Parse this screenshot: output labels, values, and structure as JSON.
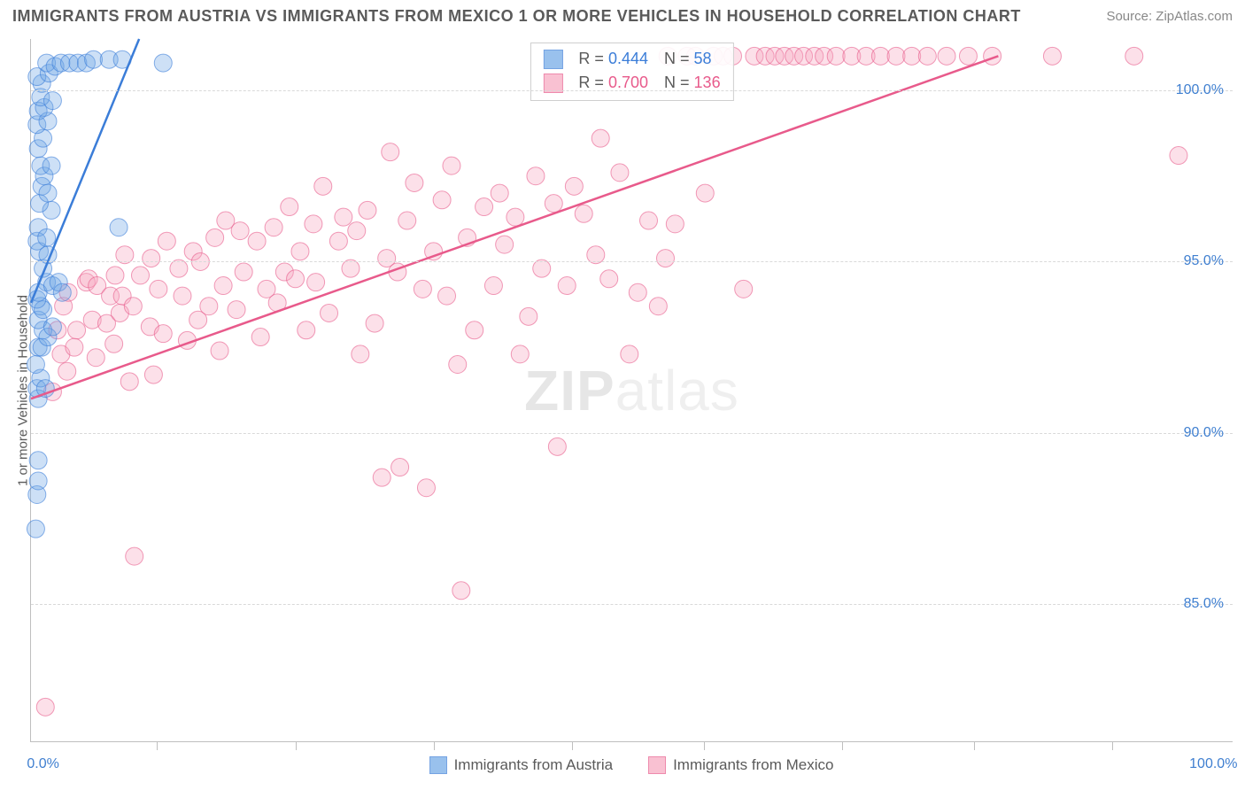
{
  "title": "IMMIGRANTS FROM AUSTRIA VS IMMIGRANTS FROM MEXICO 1 OR MORE VEHICLES IN HOUSEHOLD CORRELATION CHART",
  "source_label": "Source: ZipAtlas.com",
  "y_axis_label": "1 or more Vehicles in Household",
  "watermark": "ZIPatlas",
  "chart": {
    "type": "scatter+trend",
    "background_color": "#ffffff",
    "grid_color": "#d9d9d9",
    "axis_color": "#bfbfbf",
    "tick_label_color": "#3f7fd0",
    "tick_fontsize": 16,
    "title_fontsize": 18,
    "label_fontsize": 15,
    "xlim": [
      0,
      100
    ],
    "ylim": [
      81,
      101.5
    ],
    "y_gridlines": [
      85,
      90,
      95,
      100
    ],
    "y_tick_labels": [
      "85.0%",
      "90.0%",
      "95.0%",
      "100.0%"
    ],
    "x_ticks_minor": [
      10.5,
      22,
      33.5,
      45,
      56,
      67.5,
      78.5,
      90
    ],
    "x_tick_labels": {
      "left": "0.0%",
      "right": "100.0%"
    },
    "marker_radius": 10,
    "marker_opacity": 0.35,
    "line_width": 2.5
  },
  "series_austria": {
    "label": "Immigrants from Austria",
    "color_fill": "#6fa7e6",
    "color_stroke": "#3b7dd8",
    "R": "0.444",
    "N": "58",
    "trend": {
      "x1": 0,
      "y1": 93.8,
      "x2": 9,
      "y2": 101.5
    },
    "points": [
      [
        0.4,
        87.2
      ],
      [
        0.5,
        88.2
      ],
      [
        0.6,
        88.6
      ],
      [
        0.6,
        89.2
      ],
      [
        0.6,
        91.0
      ],
      [
        0.5,
        91.3
      ],
      [
        0.8,
        91.6
      ],
      [
        1.2,
        91.3
      ],
      [
        0.4,
        92.0
      ],
      [
        0.6,
        92.5
      ],
      [
        0.9,
        92.5
      ],
      [
        1.0,
        93.0
      ],
      [
        0.6,
        93.3
      ],
      [
        0.8,
        93.7
      ],
      [
        1.4,
        92.8
      ],
      [
        1.8,
        93.1
      ],
      [
        1.0,
        93.6
      ],
      [
        0.5,
        93.9
      ],
      [
        1.3,
        94.4
      ],
      [
        0.6,
        94.1
      ],
      [
        1.8,
        94.3
      ],
      [
        2.3,
        94.4
      ],
      [
        2.6,
        94.1
      ],
      [
        1.0,
        94.8
      ],
      [
        0.7,
        95.3
      ],
      [
        1.4,
        95.2
      ],
      [
        0.5,
        95.6
      ],
      [
        0.6,
        96.0
      ],
      [
        1.3,
        95.7
      ],
      [
        1.7,
        96.5
      ],
      [
        0.7,
        96.7
      ],
      [
        0.9,
        97.2
      ],
      [
        1.4,
        97.0
      ],
      [
        1.1,
        97.5
      ],
      [
        0.8,
        97.8
      ],
      [
        1.7,
        97.8
      ],
      [
        0.6,
        98.3
      ],
      [
        1.0,
        98.6
      ],
      [
        0.5,
        99.0
      ],
      [
        1.4,
        99.1
      ],
      [
        0.6,
        99.4
      ],
      [
        1.1,
        99.5
      ],
      [
        0.8,
        99.8
      ],
      [
        1.8,
        99.7
      ],
      [
        0.9,
        100.2
      ],
      [
        0.5,
        100.4
      ],
      [
        1.5,
        100.5
      ],
      [
        1.3,
        100.8
      ],
      [
        2.0,
        100.7
      ],
      [
        2.5,
        100.8
      ],
      [
        3.2,
        100.8
      ],
      [
        3.9,
        100.8
      ],
      [
        4.6,
        100.8
      ],
      [
        5.2,
        100.9
      ],
      [
        6.5,
        100.9
      ],
      [
        7.6,
        100.9
      ],
      [
        11.0,
        100.8
      ],
      [
        7.3,
        96.0
      ]
    ]
  },
  "series_mexico": {
    "label": "Immigrants from Mexico",
    "color_fill": "#f7a7bf",
    "color_stroke": "#e85a8b",
    "R": "0.700",
    "N": "136",
    "trend": {
      "x1": 0,
      "y1": 91.0,
      "x2": 80.5,
      "y2": 101.0
    },
    "points": [
      [
        1.2,
        82.0
      ],
      [
        1.8,
        91.2
      ],
      [
        2.5,
        92.3
      ],
      [
        2.7,
        93.7
      ],
      [
        2.2,
        93.0
      ],
      [
        3.0,
        91.8
      ],
      [
        3.8,
        93.0
      ],
      [
        3.1,
        94.1
      ],
      [
        3.6,
        92.5
      ],
      [
        4.6,
        94.4
      ],
      [
        5.1,
        93.3
      ],
      [
        4.8,
        94.5
      ],
      [
        5.4,
        92.2
      ],
      [
        5.5,
        94.3
      ],
      [
        6.3,
        93.2
      ],
      [
        6.6,
        94.0
      ],
      [
        6.9,
        92.6
      ],
      [
        7.0,
        94.6
      ],
      [
        7.4,
        93.5
      ],
      [
        7.6,
        94.0
      ],
      [
        7.8,
        95.2
      ],
      [
        8.2,
        91.5
      ],
      [
        8.5,
        93.7
      ],
      [
        8.6,
        86.4
      ],
      [
        9.1,
        94.6
      ],
      [
        9.9,
        93.1
      ],
      [
        10.0,
        95.1
      ],
      [
        10.2,
        91.7
      ],
      [
        10.6,
        94.2
      ],
      [
        11.0,
        92.9
      ],
      [
        11.3,
        95.6
      ],
      [
        12.3,
        94.8
      ],
      [
        12.6,
        94.0
      ],
      [
        13.0,
        92.7
      ],
      [
        13.5,
        95.3
      ],
      [
        13.9,
        93.3
      ],
      [
        14.1,
        95.0
      ],
      [
        14.8,
        93.7
      ],
      [
        15.3,
        95.7
      ],
      [
        15.7,
        92.4
      ],
      [
        16.0,
        94.3
      ],
      [
        16.2,
        96.2
      ],
      [
        17.1,
        93.6
      ],
      [
        17.4,
        95.9
      ],
      [
        17.7,
        94.7
      ],
      [
        18.8,
        95.6
      ],
      [
        19.1,
        92.8
      ],
      [
        19.6,
        94.2
      ],
      [
        20.2,
        96.0
      ],
      [
        20.5,
        93.8
      ],
      [
        21.1,
        94.7
      ],
      [
        21.5,
        96.6
      ],
      [
        22.0,
        94.5
      ],
      [
        22.4,
        95.3
      ],
      [
        22.9,
        93.0
      ],
      [
        23.5,
        96.1
      ],
      [
        23.7,
        94.4
      ],
      [
        24.3,
        97.2
      ],
      [
        24.8,
        93.5
      ],
      [
        25.6,
        95.6
      ],
      [
        26.0,
        96.3
      ],
      [
        26.6,
        94.8
      ],
      [
        27.1,
        95.9
      ],
      [
        27.4,
        92.3
      ],
      [
        28.0,
        96.5
      ],
      [
        28.6,
        93.2
      ],
      [
        29.2,
        88.7
      ],
      [
        29.6,
        95.1
      ],
      [
        29.9,
        98.2
      ],
      [
        30.5,
        94.7
      ],
      [
        30.7,
        89.0
      ],
      [
        31.3,
        96.2
      ],
      [
        31.9,
        97.3
      ],
      [
        32.6,
        94.2
      ],
      [
        32.9,
        88.4
      ],
      [
        33.5,
        95.3
      ],
      [
        34.2,
        96.8
      ],
      [
        34.6,
        94.0
      ],
      [
        35.0,
        97.8
      ],
      [
        35.5,
        92.0
      ],
      [
        35.8,
        85.4
      ],
      [
        36.3,
        95.7
      ],
      [
        36.9,
        93.0
      ],
      [
        37.7,
        96.6
      ],
      [
        38.5,
        94.3
      ],
      [
        39.0,
        97.0
      ],
      [
        39.4,
        95.5
      ],
      [
        40.3,
        96.3
      ],
      [
        40.7,
        92.3
      ],
      [
        41.4,
        93.4
      ],
      [
        42.0,
        97.5
      ],
      [
        42.5,
        94.8
      ],
      [
        43.5,
        96.7
      ],
      [
        43.8,
        89.6
      ],
      [
        44.6,
        94.3
      ],
      [
        45.2,
        97.2
      ],
      [
        46.0,
        96.4
      ],
      [
        47.0,
        95.2
      ],
      [
        47.4,
        98.6
      ],
      [
        48.1,
        94.5
      ],
      [
        49.0,
        97.6
      ],
      [
        49.8,
        92.3
      ],
      [
        50.5,
        94.1
      ],
      [
        51.4,
        96.2
      ],
      [
        52.2,
        93.7
      ],
      [
        52.8,
        95.1
      ],
      [
        53.6,
        96.1
      ],
      [
        54.6,
        101.0
      ],
      [
        55.3,
        101.0
      ],
      [
        56.1,
        97.0
      ],
      [
        56.8,
        101.0
      ],
      [
        57.6,
        101.0
      ],
      [
        58.4,
        101.0
      ],
      [
        59.3,
        94.2
      ],
      [
        60.2,
        101.0
      ],
      [
        61.1,
        101.0
      ],
      [
        61.9,
        101.0
      ],
      [
        62.7,
        101.0
      ],
      [
        63.5,
        101.0
      ],
      [
        64.3,
        101.0
      ],
      [
        65.2,
        101.0
      ],
      [
        66.0,
        101.0
      ],
      [
        67.0,
        101.0
      ],
      [
        68.3,
        101.0
      ],
      [
        69.5,
        101.0
      ],
      [
        70.7,
        101.0
      ],
      [
        72.0,
        101.0
      ],
      [
        73.3,
        101.0
      ],
      [
        74.6,
        101.0
      ],
      [
        76.2,
        101.0
      ],
      [
        78.0,
        101.0
      ],
      [
        80.0,
        101.0
      ],
      [
        85.0,
        101.0
      ],
      [
        91.8,
        101.0
      ],
      [
        95.5,
        98.1
      ],
      [
        53.0,
        101.0
      ]
    ]
  },
  "legend_bottom": {
    "austria": "Immigrants from Austria",
    "mexico": "Immigrants from Mexico"
  },
  "rn_legend": {
    "R_label": "R",
    "N_label": "N",
    "eq": "="
  }
}
